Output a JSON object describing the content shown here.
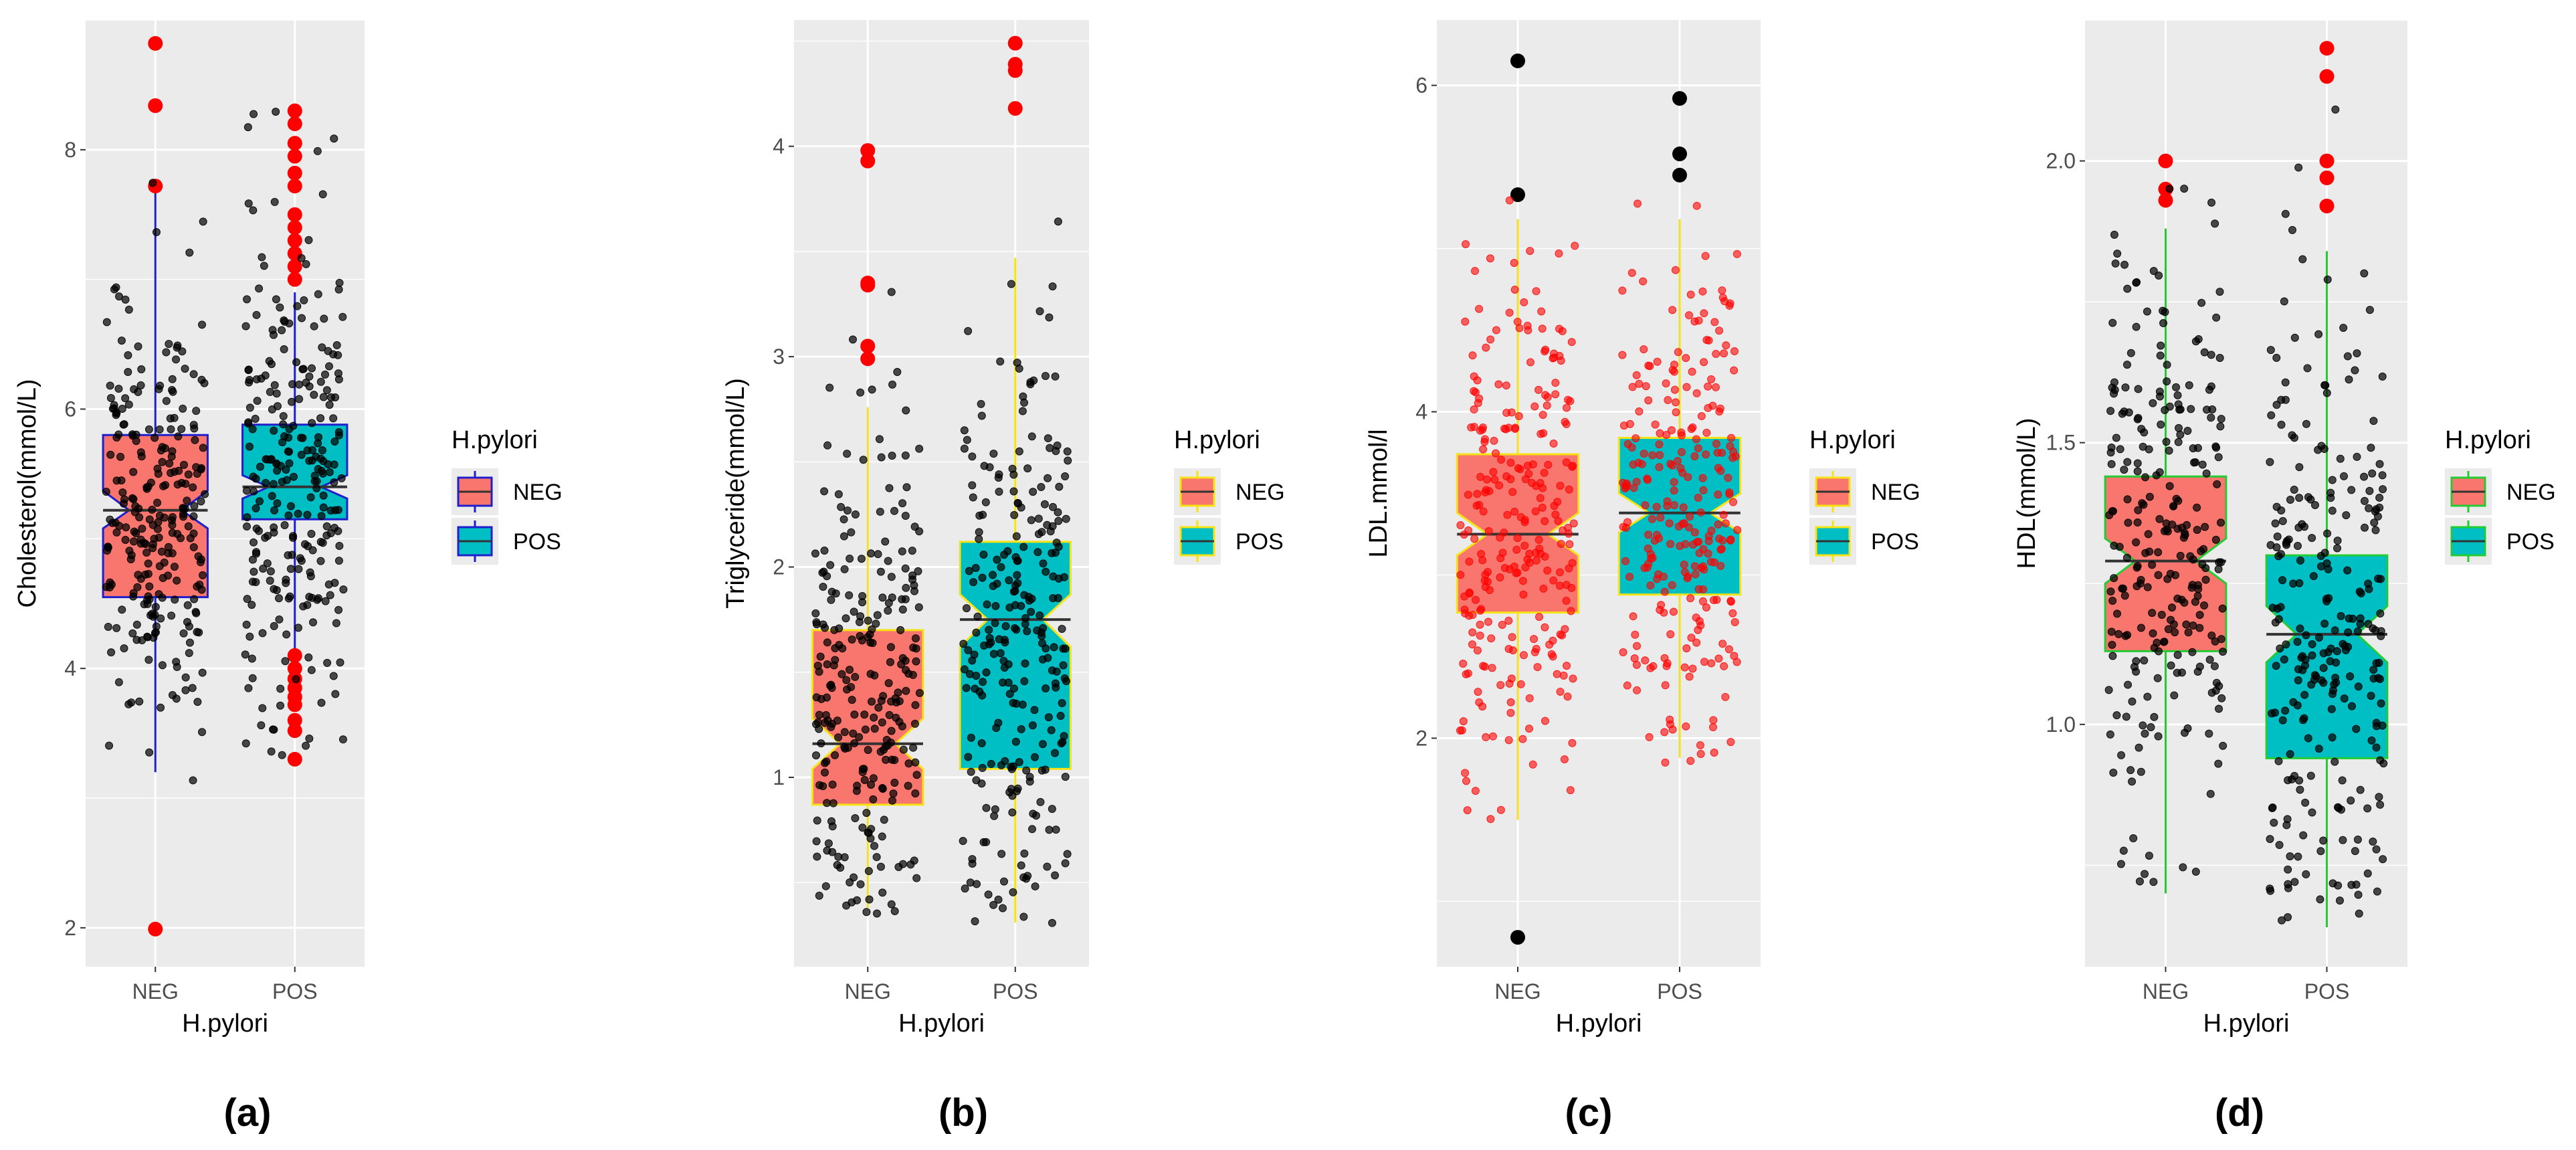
{
  "figure": {
    "panel_labels": [
      "(a)",
      "(b)",
      "(c)",
      "(d)"
    ]
  },
  "chart_data": [
    {
      "type": "boxplot",
      "panel": "(a)",
      "title": "",
      "xlabel": "H.pylori",
      "ylabel": "Cholesterol(mmol/L)",
      "categories": [
        "NEG",
        "POS"
      ],
      "ylim": [
        1.7,
        9.0
      ],
      "yticks": [
        2,
        4,
        6,
        8
      ],
      "ytick_labels": [
        "2",
        "4",
        "6",
        "8"
      ],
      "legend": {
        "title": "H.pylori",
        "entries": [
          "NEG",
          "POS"
        ],
        "position": "right"
      },
      "colors": {
        "NEG": "#F8766D",
        "POS": "#00BFC4",
        "outline": "#1F1FCC",
        "outlier": "#FF0000",
        "jitter": "#000000",
        "jitter_alpha": 0.7
      },
      "notched": true,
      "boxes": [
        {
          "group": "NEG",
          "q1": 4.55,
          "median": 5.22,
          "q3": 5.8,
          "whisker_low": 3.2,
          "whisker_high": 7.72,
          "notch": [
            5.08,
            5.37
          ],
          "outliers": [
            8.82,
            8.34,
            7.72,
            1.99
          ]
        },
        {
          "group": "POS",
          "q1": 5.15,
          "median": 5.4,
          "q3": 5.88,
          "whisker_low": 4.15,
          "whisker_high": 6.9,
          "notch": [
            5.31,
            5.49
          ],
          "outliers": [
            8.3,
            8.2,
            8.05,
            7.95,
            7.82,
            7.72,
            7.5,
            7.4,
            7.3,
            7.2,
            7.1,
            7.0,
            4.1,
            4.0,
            3.92,
            3.85,
            3.78,
            3.72,
            3.6,
            3.52,
            3.3
          ]
        }
      ],
      "jitter_summary": [
        {
          "group": "NEG",
          "min": 3.1,
          "max": 8.35,
          "mean": 5.2,
          "sd": 0.85,
          "count": 260
        },
        {
          "group": "POS",
          "min": 3.3,
          "max": 8.3,
          "mean": 5.45,
          "sd": 0.95,
          "count": 260
        }
      ]
    },
    {
      "type": "boxplot",
      "panel": "(b)",
      "title": "",
      "xlabel": "H.pylori",
      "ylabel": "Triglyceride(mmol/L)",
      "categories": [
        "NEG",
        "POS"
      ],
      "ylim": [
        0.1,
        4.6
      ],
      "yticks": [
        1,
        2,
        3,
        4
      ],
      "ytick_labels": [
        "1",
        "2",
        "3",
        "4"
      ],
      "legend": {
        "title": "H.pylori",
        "entries": [
          "NEG",
          "POS"
        ],
        "position": "right"
      },
      "colors": {
        "NEG": "#F8766D",
        "POS": "#00BFC4",
        "outline": "#F5E316",
        "outlier": "#FF0000",
        "jitter": "#000000",
        "jitter_alpha": 0.7
      },
      "notched": true,
      "boxes": [
        {
          "group": "NEG",
          "q1": 0.87,
          "median": 1.16,
          "q3": 1.7,
          "whisker_low": 0.38,
          "whisker_high": 2.76,
          "notch": [
            1.04,
            1.28
          ],
          "outliers": [
            3.98,
            3.93,
            3.35,
            3.34,
            3.05,
            2.99
          ]
        },
        {
          "group": "POS",
          "q1": 1.04,
          "median": 1.75,
          "q3": 2.12,
          "whisker_low": 0.31,
          "whisker_high": 3.47,
          "notch": [
            1.62,
            1.87
          ],
          "outliers": [
            4.49,
            4.39,
            4.36,
            4.18
          ]
        }
      ],
      "jitter_summary": [
        {
          "group": "NEG",
          "min": 0.35,
          "max": 3.95,
          "mean": 1.35,
          "sd": 0.62,
          "count": 260
        },
        {
          "group": "POS",
          "min": 0.3,
          "max": 4.5,
          "mean": 1.65,
          "sd": 0.72,
          "count": 260
        }
      ]
    },
    {
      "type": "boxplot",
      "panel": "(c)",
      "title": "",
      "xlabel": "H.pylori",
      "ylabel": "LDL.mmol/l",
      "categories": [
        "NEG",
        "POS"
      ],
      "ylim": [
        0.6,
        6.4
      ],
      "yticks": [
        2,
        4,
        6
      ],
      "ytick_labels": [
        "2",
        "4",
        "6"
      ],
      "legend": {
        "title": "H.pylori",
        "entries": [
          "NEG",
          "POS"
        ],
        "position": "right"
      },
      "colors": {
        "NEG": "#F8766D",
        "POS": "#00BFC4",
        "outline": "#F5E316",
        "outlier": "#000000",
        "jitter": "#FF0000",
        "jitter_alpha": 0.6
      },
      "notched": true,
      "boxes": [
        {
          "group": "NEG",
          "q1": 2.77,
          "median": 3.25,
          "q3": 3.74,
          "whisker_low": 1.5,
          "whisker_high": 5.18,
          "notch": [
            3.12,
            3.38
          ],
          "outliers": [
            6.15,
            5.33,
            0.78
          ]
        },
        {
          "group": "POS",
          "q1": 2.88,
          "median": 3.38,
          "q3": 3.84,
          "whisker_low": 1.88,
          "whisker_high": 5.18,
          "notch": [
            3.26,
            3.5
          ],
          "outliers": [
            5.92,
            5.58,
            5.45
          ]
        }
      ],
      "jitter_summary": [
        {
          "group": "NEG",
          "min": 1.5,
          "max": 6.15,
          "mean": 3.25,
          "sd": 0.78,
          "count": 260
        },
        {
          "group": "POS",
          "min": 1.85,
          "max": 5.95,
          "mean": 3.4,
          "sd": 0.78,
          "count": 260
        }
      ]
    },
    {
      "type": "boxplot",
      "panel": "(d)",
      "title": "",
      "xlabel": "H.pylori",
      "ylabel": "HDL(mmol/L)",
      "categories": [
        "NEG",
        "POS"
      ],
      "ylim": [
        0.57,
        2.25
      ],
      "yticks": [
        1.0,
        1.5,
        2.0
      ],
      "ytick_labels": [
        "1.0",
        "1.5",
        "2.0"
      ],
      "legend": {
        "title": "H.pylori",
        "entries": [
          "NEG",
          "POS"
        ],
        "position": "right"
      },
      "colors": {
        "NEG": "#F8766D",
        "POS": "#00BFC4",
        "outline": "#22CC33",
        "outlier": "#FF0000",
        "jitter": "#000000",
        "jitter_alpha": 0.7
      },
      "notched": true,
      "boxes": [
        {
          "group": "NEG",
          "q1": 1.13,
          "median": 1.29,
          "q3": 1.44,
          "whisker_low": 0.7,
          "whisker_high": 1.88,
          "notch": [
            1.25,
            1.33
          ],
          "outliers": [
            2.0,
            1.95,
            1.93
          ]
        },
        {
          "group": "POS",
          "q1": 0.94,
          "median": 1.16,
          "q3": 1.3,
          "whisker_low": 0.64,
          "whisker_high": 1.84,
          "notch": [
            1.11,
            1.21
          ],
          "outliers": [
            2.2,
            2.15,
            2.0,
            1.97,
            1.92
          ]
        }
      ],
      "jitter_summary": [
        {
          "group": "NEG",
          "min": 0.7,
          "max": 1.96,
          "mean": 1.3,
          "sd": 0.26,
          "count": 260
        },
        {
          "group": "POS",
          "min": 0.65,
          "max": 2.2,
          "mean": 1.15,
          "sd": 0.3,
          "count": 260
        }
      ]
    }
  ]
}
